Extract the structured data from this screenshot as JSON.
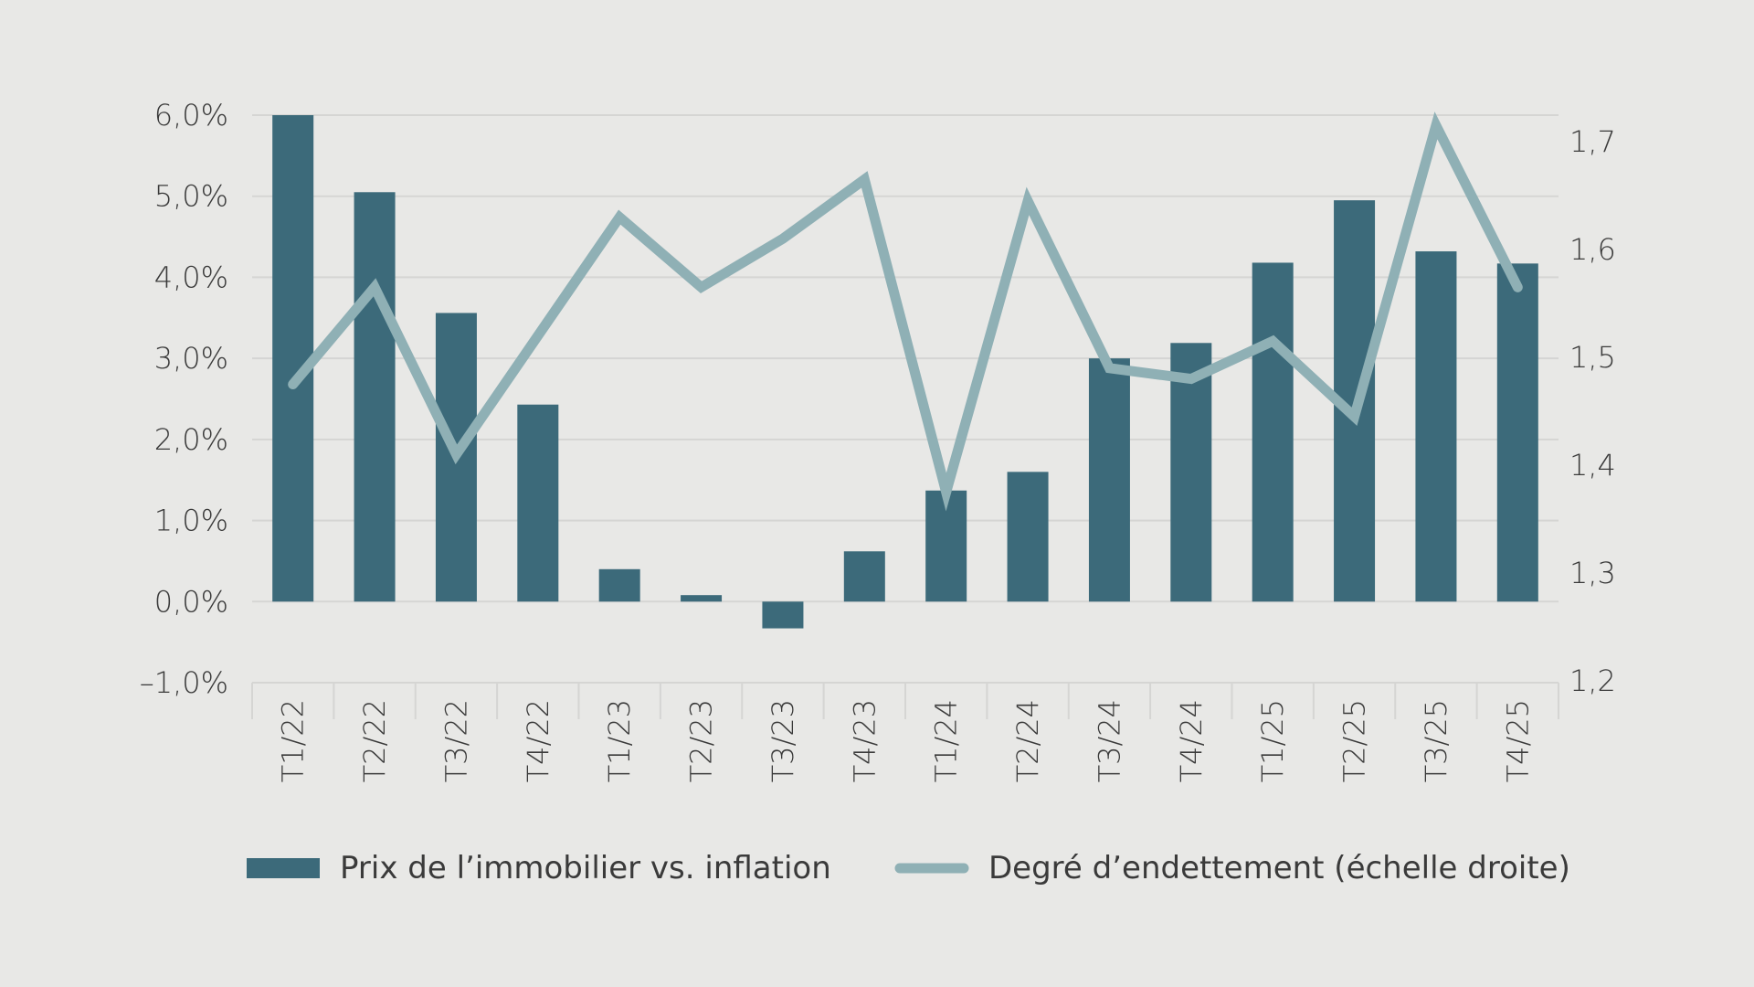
{
  "chart_data": {
    "type": "bar+line",
    "categories": [
      "T1/22",
      "T2/22",
      "T3/22",
      "T4/22",
      "T1/23",
      "T2/23",
      "T3/23",
      "T4/23",
      "T1/24",
      "T2/24",
      "T3/24",
      "T4/24",
      "T1/25",
      "T2/25",
      "T3/25",
      "T4/25"
    ],
    "series": [
      {
        "name": "Prix de l’immobilier vs. inflation",
        "type": "bar",
        "axis": "left",
        "color": "#3c6a7a",
        "values": [
          6.0,
          5.05,
          3.56,
          2.43,
          0.4,
          0.08,
          -0.33,
          0.62,
          1.37,
          1.6,
          3.0,
          3.19,
          4.18,
          4.95,
          4.32,
          4.17
        ]
      },
      {
        "name": "Degré d’endettement (échelle droite)",
        "type": "line",
        "axis": "right",
        "color": "#8fb0b5",
        "values": [
          1.475,
          1.565,
          1.41,
          1.52,
          1.63,
          1.565,
          1.61,
          1.665,
          1.375,
          1.645,
          1.49,
          1.48,
          1.515,
          1.445,
          1.715,
          1.565
        ]
      }
    ],
    "left_axis": {
      "ylim": [
        -1,
        6
      ],
      "ticks": [
        -1,
        0,
        1,
        2,
        3,
        4,
        5,
        6
      ],
      "tick_labels": [
        "–1,0%",
        "0,0%",
        "1,0%",
        "2,0%",
        "3,0%",
        "4,0%",
        "5,0%",
        "6,0%"
      ]
    },
    "right_axis": {
      "ylim": [
        1.2,
        1.7
      ],
      "ticks": [
        1.2,
        1.3,
        1.4,
        1.5,
        1.6,
        1.7
      ],
      "tick_labels": [
        "1,2",
        "1,3",
        "1,4",
        "1,5",
        "1,6",
        "1,7"
      ]
    },
    "grid": true,
    "legend_placement": "bottom",
    "background": "#e8e8e6"
  }
}
